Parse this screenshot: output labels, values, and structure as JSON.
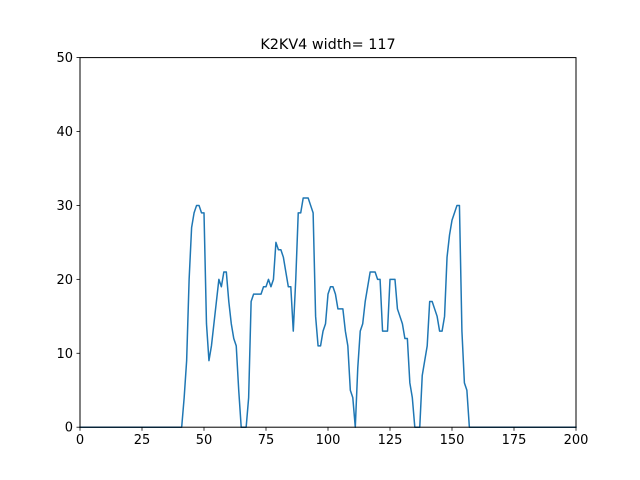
{
  "chart_data": {
    "type": "line",
    "title": "K2KV4 width= 117",
    "xlabel": "",
    "ylabel": "",
    "xlim": [
      0,
      200
    ],
    "ylim": [
      0,
      50
    ],
    "xticks": [
      0,
      25,
      50,
      75,
      100,
      125,
      150,
      175,
      200
    ],
    "xtick_labels": [
      "0",
      "25",
      "50",
      "75",
      "100",
      "125",
      "150",
      "175",
      "200"
    ],
    "yticks": [
      0,
      10,
      20,
      30,
      40,
      50
    ],
    "ytick_labels": [
      "0",
      "10",
      "20",
      "30",
      "40",
      "50"
    ],
    "grid": false,
    "legend": null,
    "series": [
      {
        "color": "#1f77b4",
        "x": [
          0,
          41,
          42,
          43,
          44,
          45,
          46,
          47,
          48,
          49,
          50,
          51,
          52,
          53,
          54,
          55,
          56,
          57,
          58,
          59,
          60,
          61,
          62,
          63,
          64,
          65,
          66,
          67,
          68,
          69,
          70,
          71,
          72,
          73,
          74,
          75,
          76,
          77,
          78,
          79,
          80,
          81,
          82,
          83,
          84,
          85,
          86,
          87,
          88,
          89,
          90,
          91,
          92,
          93,
          94,
          95,
          96,
          97,
          98,
          99,
          100,
          101,
          102,
          103,
          104,
          105,
          106,
          107,
          108,
          109,
          110,
          111,
          112,
          113,
          114,
          115,
          116,
          117,
          118,
          119,
          120,
          121,
          122,
          123,
          124,
          125,
          126,
          127,
          128,
          129,
          130,
          131,
          132,
          133,
          134,
          135,
          136,
          137,
          138,
          139,
          140,
          141,
          142,
          143,
          144,
          145,
          146,
          147,
          148,
          149,
          150,
          151,
          152,
          153,
          154,
          155,
          156,
          157,
          158,
          200
        ],
        "values": [
          0,
          0,
          4,
          9,
          20,
          27,
          29,
          30,
          30,
          29,
          29,
          14,
          9,
          11,
          14,
          17,
          20,
          19,
          21,
          21,
          17,
          14,
          12,
          11,
          5,
          0,
          0,
          0,
          4,
          17,
          18,
          18,
          18,
          18,
          19,
          19,
          20,
          19,
          20,
          25,
          24,
          24,
          23,
          21,
          19,
          19,
          13,
          20,
          29,
          29,
          31,
          31,
          31,
          30,
          29,
          15,
          11,
          11,
          13,
          14,
          18,
          19,
          19,
          18,
          16,
          16,
          16,
          13,
          11,
          5,
          4,
          0,
          8,
          13,
          14,
          17,
          19,
          21,
          21,
          21,
          20,
          20,
          13,
          13,
          13,
          20,
          20,
          20,
          16,
          15,
          14,
          12,
          12,
          6,
          4,
          0,
          0,
          0,
          7,
          9,
          11,
          17,
          17,
          16,
          15,
          13,
          13,
          15,
          23,
          26,
          28,
          29,
          30,
          30,
          13,
          6,
          5,
          0,
          0,
          0
        ]
      }
    ]
  }
}
